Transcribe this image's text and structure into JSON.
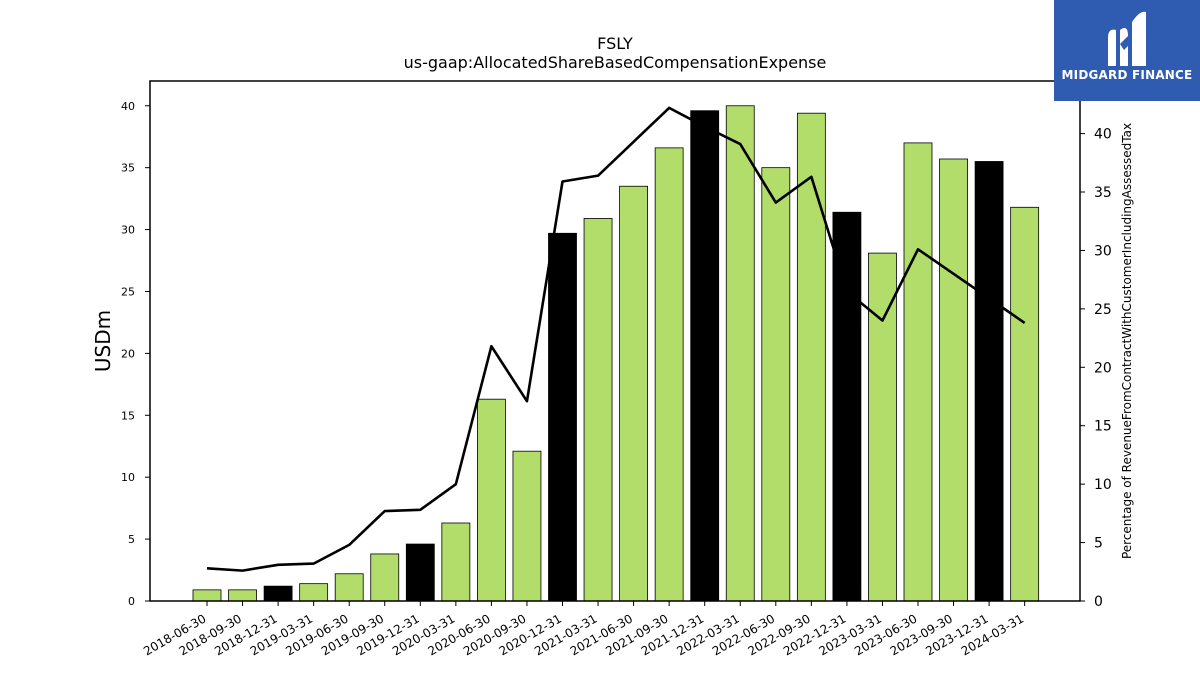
{
  "colors": {
    "bar_green": "#b2dd6b",
    "bar_black": "#000000",
    "line": "#000000",
    "logo_bg": "#2f5bb0",
    "logo_fg": "#ffffff"
  },
  "logo": {
    "text": "MIDGARD FINANCE",
    "icon": "midgard-logo-icon"
  },
  "chart_data": {
    "type": "bar",
    "title": "FSLY",
    "subtitle": "us-gaap:AllocatedShareBasedCompensationExpense",
    "ylabel": "USDm",
    "y2label": "Percentage of RevenueFromContractWithCustomerIncludingAssessedTax",
    "ylim": [
      0,
      42
    ],
    "y2lim": [
      0,
      44.5
    ],
    "yticks": [
      0,
      5,
      10,
      15,
      20,
      25,
      30,
      35,
      40
    ],
    "y2ticks": [
      0,
      5,
      10,
      15,
      20,
      25,
      30,
      35,
      40
    ],
    "grid": false,
    "categories": [
      "2018-06-30",
      "2018-09-30",
      "2018-12-31",
      "2019-03-31",
      "2019-06-30",
      "2019-09-30",
      "2019-12-31",
      "2020-03-31",
      "2020-06-30",
      "2020-09-30",
      "2020-12-31",
      "2021-03-31",
      "2021-06-30",
      "2021-09-30",
      "2021-12-31",
      "2022-03-31",
      "2022-06-30",
      "2022-09-30",
      "2022-12-31",
      "2023-03-31",
      "2023-06-30",
      "2023-09-30",
      "2023-12-31",
      "2024-03-31"
    ],
    "series": [
      {
        "type": "bar",
        "axis": "left",
        "values": [
          0.9,
          0.9,
          1.2,
          1.4,
          2.2,
          3.8,
          4.6,
          6.3,
          16.3,
          12.1,
          29.7,
          30.9,
          33.5,
          36.6,
          39.6,
          40.0,
          35.0,
          39.4,
          31.4,
          28.1,
          37.0,
          35.7,
          35.5,
          31.8
        ],
        "highlight": [
          false,
          false,
          true,
          false,
          false,
          false,
          true,
          false,
          false,
          false,
          true,
          false,
          false,
          false,
          true,
          false,
          false,
          false,
          true,
          false,
          false,
          false,
          true,
          false
        ]
      },
      {
        "type": "line",
        "axis": "right",
        "values": [
          2.8,
          2.6,
          3.1,
          3.2,
          4.8,
          7.7,
          7.8,
          10.0,
          21.8,
          17.1,
          35.9,
          36.4,
          39.3,
          42.2,
          40.6,
          39.1,
          34.1,
          36.3,
          26.5,
          24.0,
          30.1,
          28.0,
          25.9,
          23.8
        ]
      }
    ]
  }
}
